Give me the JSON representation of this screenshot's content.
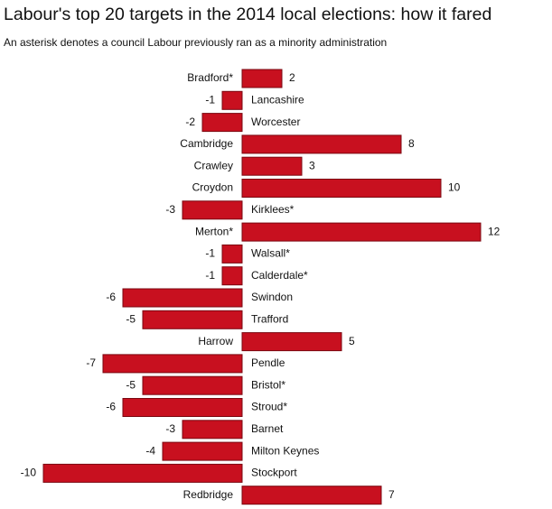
{
  "chart_data": {
    "type": "bar",
    "orientation": "horizontal",
    "title": "Labour's top 20 targets in the 2014 local elections: how it fared",
    "subtitle": "An asterisk denotes a council Labour previously ran as a minority administration",
    "categories": [
      "Bradford*",
      "Lancashire",
      "Worcester",
      "Cambridge",
      "Crawley",
      "Croydon",
      "Kirklees*",
      "Merton*",
      "Walsall*",
      "Calderdale*",
      "Swindon",
      "Trafford",
      "Harrow",
      "Pendle",
      "Bristol*",
      "Stroud*",
      "Barnet",
      "Milton Keynes",
      "Stockport",
      "Redbridge"
    ],
    "values": [
      2,
      -1,
      -2,
      8,
      3,
      10,
      -3,
      12,
      -1,
      -1,
      -6,
      -5,
      5,
      -7,
      -5,
      -6,
      -3,
      -4,
      -10,
      7
    ],
    "color": "#c8101f"
  }
}
